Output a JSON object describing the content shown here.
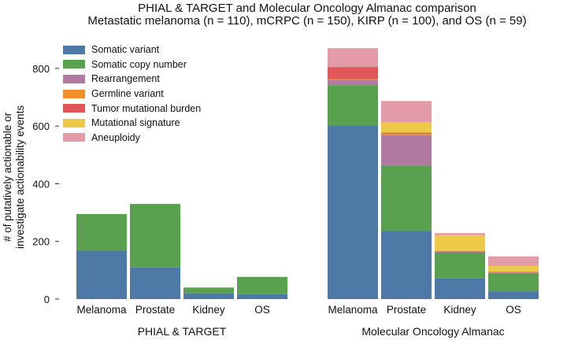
{
  "chart_data": {
    "type": "bar",
    "stacked": true,
    "title": "PHIAL & TARGET and Molecular Oncology Almanac comparison",
    "subtitle": "Metastatic melanoma (n = 110), mCRPC (n = 150), KIRP (n = 100), and OS (n = 59)",
    "ylabel_lines": [
      "# of putatively actionable or",
      "investigate actionability events"
    ],
    "ylim": [
      0,
      880
    ],
    "yticks": [
      0,
      200,
      400,
      600,
      800
    ],
    "grid": false,
    "legend_position": "top-left",
    "groups": [
      {
        "label": "PHIAL & TARGET",
        "categories": [
          "Melanoma",
          "Prostate",
          "Kidney",
          "OS"
        ],
        "series": [
          {
            "name": "Somatic variant",
            "values": [
              168,
              110,
              20,
              17
            ]
          },
          {
            "name": "Somatic copy number",
            "values": [
              127,
              220,
              20,
              60
            ]
          },
          {
            "name": "Rearrangement",
            "values": [
              0,
              0,
              0,
              0
            ]
          },
          {
            "name": "Germline variant",
            "values": [
              0,
              0,
              0,
              0
            ]
          },
          {
            "name": "Tumor mutational burden",
            "values": [
              0,
              0,
              0,
              0
            ]
          },
          {
            "name": "Mutational signature",
            "values": [
              0,
              0,
              0,
              0
            ]
          },
          {
            "name": "Aneuploidy",
            "values": [
              0,
              0,
              0,
              0
            ]
          }
        ]
      },
      {
        "label": "Molecular Oncology Almanac",
        "categories": [
          "Melanoma",
          "Prostate",
          "Kidney",
          "OS"
        ],
        "series": [
          {
            "name": "Somatic variant",
            "values": [
              602,
              237,
              73,
              27
            ]
          },
          {
            "name": "Somatic copy number",
            "values": [
              140,
              226,
              88,
              63
            ]
          },
          {
            "name": "Rearrangement",
            "values": [
              18,
              105,
              3,
              2
            ]
          },
          {
            "name": "Germline variant",
            "values": [
              3,
              5,
              1,
              1
            ]
          },
          {
            "name": "Tumor mutational burden",
            "values": [
              42,
              4,
              2,
              2
            ]
          },
          {
            "name": "Mutational signature",
            "values": [
              0,
              37,
              55,
              20
            ]
          },
          {
            "name": "Aneuploidy",
            "values": [
              65,
              73,
              7,
              33
            ]
          }
        ]
      }
    ],
    "colors": [
      "#4e79a7",
      "#59a14f",
      "#b07aa1",
      "#f28e2b",
      "#e15759",
      "#edc948",
      "#e39ba8"
    ]
  }
}
